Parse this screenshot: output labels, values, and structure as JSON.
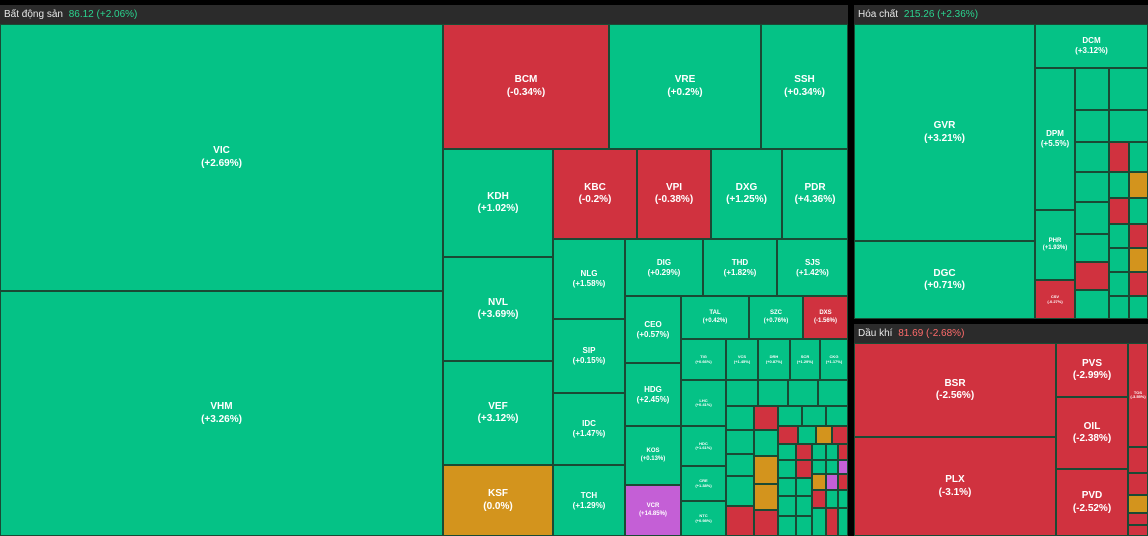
{
  "colors": {
    "up": "#05c286",
    "down": "#d0323f",
    "ref": "#d3941d",
    "ceiling": "#c45fd6"
  },
  "sectors": [
    {
      "name": "Bất động sản",
      "value": "86.12 (+2.06%)",
      "trend": "up"
    },
    {
      "name": "Hóa chất",
      "value": "215.26 (+2.36%)",
      "trend": "up"
    },
    {
      "name": "Dầu khí",
      "value": "81.69 (-2.68%)",
      "trend": "down"
    }
  ],
  "tiles": [
    {
      "ticker": "VIC",
      "change": "(+2.69%)"
    },
    {
      "ticker": "VHM",
      "change": "(+3.26%)"
    },
    {
      "ticker": "BCM",
      "change": "(-0.34%)"
    },
    {
      "ticker": "VRE",
      "change": "(+0.2%)"
    },
    {
      "ticker": "SSH",
      "change": "(+0.34%)"
    },
    {
      "ticker": "KDH",
      "change": "(+1.02%)"
    },
    {
      "ticker": "KBC",
      "change": "(-0.2%)"
    },
    {
      "ticker": "VPI",
      "change": "(-0.38%)"
    },
    {
      "ticker": "DXG",
      "change": "(+1.25%)"
    },
    {
      "ticker": "PDR",
      "change": "(+4.36%)"
    },
    {
      "ticker": "NVL",
      "change": "(+3.69%)"
    },
    {
      "ticker": "NLG",
      "change": "(+1.58%)"
    },
    {
      "ticker": "DIG",
      "change": "(+0.29%)"
    },
    {
      "ticker": "THD",
      "change": "(+1.82%)"
    },
    {
      "ticker": "SJS",
      "change": "(+1.42%)"
    },
    {
      "ticker": "VEF",
      "change": "(+3.12%)"
    },
    {
      "ticker": "SIP",
      "change": "(+0.15%)"
    },
    {
      "ticker": "CEO",
      "change": "(+0.57%)"
    },
    {
      "ticker": "TAL",
      "change": "(+0.42%)"
    },
    {
      "ticker": "SZC",
      "change": "(+0.76%)"
    },
    {
      "ticker": "DXS",
      "change": "(-1.56%)"
    },
    {
      "ticker": "IDC",
      "change": "(+1.47%)"
    },
    {
      "ticker": "HDG",
      "change": "(+2.45%)"
    },
    {
      "ticker": "KSF",
      "change": "(0.0%)"
    },
    {
      "ticker": "TCH",
      "change": "(+1.29%)"
    },
    {
      "ticker": "KOS",
      "change": "(+0.13%)"
    },
    {
      "ticker": "VCR",
      "change": "(+14.85%)"
    },
    {
      "ticker": "TIG",
      "change": "(+0.66%)"
    },
    {
      "ticker": "VCS",
      "change": "(+1.45%)"
    },
    {
      "ticker": "DRH",
      "change": "(+0.87%)"
    },
    {
      "ticker": "SCR",
      "change": "(+1.29%)"
    },
    {
      "ticker": "CKG",
      "change": "(+1.17%)"
    },
    {
      "ticker": "LHC",
      "change": "(+0.41%)"
    },
    {
      "ticker": "HDC",
      "change": "(+1.61%)"
    },
    {
      "ticker": "CRE",
      "change": "(+1.38%)"
    },
    {
      "ticker": "NTC",
      "change": "(+0.98%)"
    },
    {
      "ticker": "DCM",
      "change": "(+3.12%)"
    },
    {
      "ticker": "GVR",
      "change": "(+3.21%)"
    },
    {
      "ticker": "DPM",
      "change": "(+5.5%)"
    },
    {
      "ticker": "PHR",
      "change": "(+1.93%)"
    },
    {
      "ticker": "DGC",
      "change": "(+0.71%)"
    },
    {
      "ticker": "CSV",
      "change": "(-0.27%)"
    },
    {
      "ticker": "BSR",
      "change": "(-2.56%)"
    },
    {
      "ticker": "PVS",
      "change": "(-2.99%)"
    },
    {
      "ticker": "OIL",
      "change": "(-2.38%)"
    },
    {
      "ticker": "PLX",
      "change": "(-3.1%)"
    },
    {
      "ticker": "PVD",
      "change": "(-2.52%)"
    },
    {
      "ticker": "TOS",
      "change": "(-3.55%)"
    }
  ]
}
